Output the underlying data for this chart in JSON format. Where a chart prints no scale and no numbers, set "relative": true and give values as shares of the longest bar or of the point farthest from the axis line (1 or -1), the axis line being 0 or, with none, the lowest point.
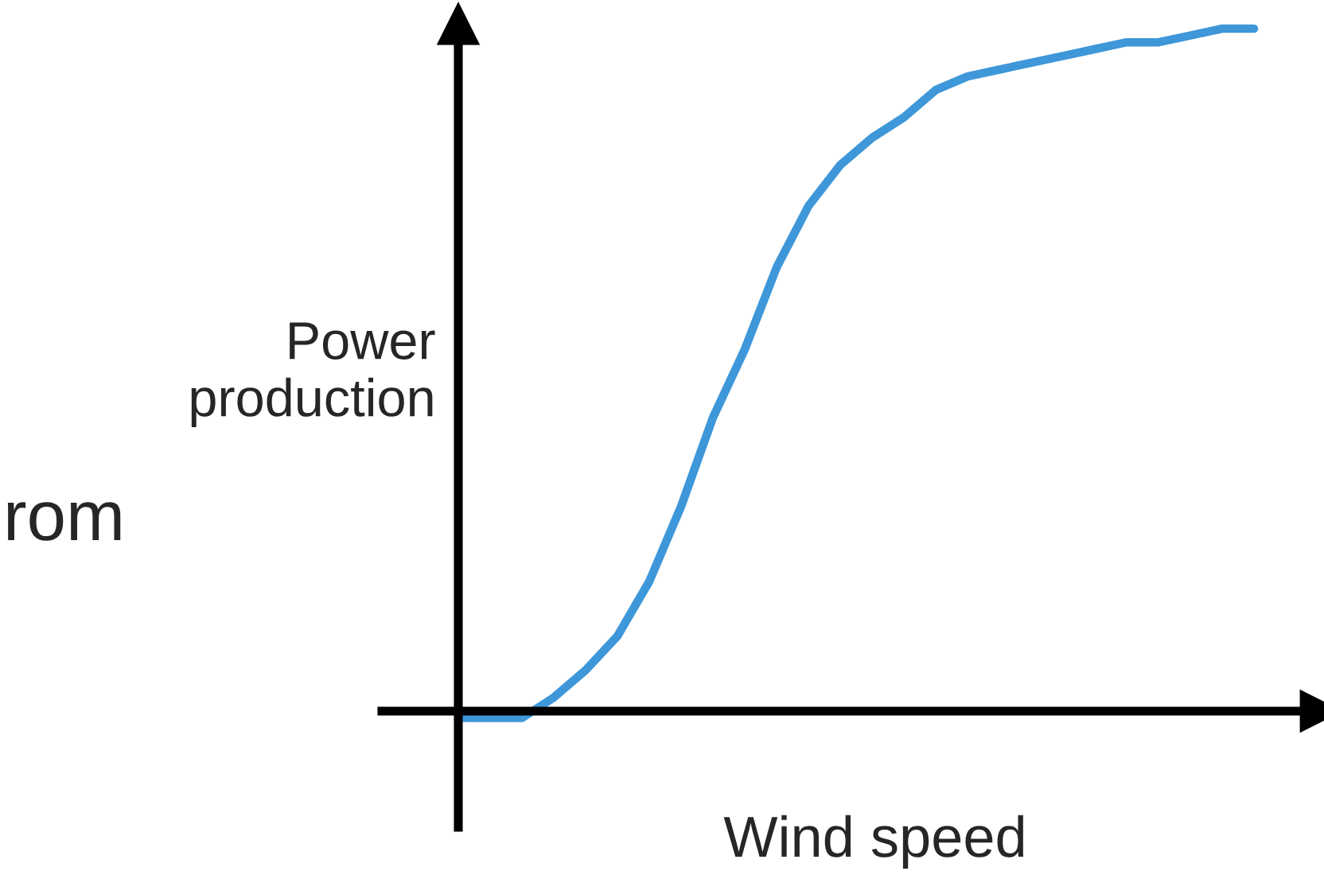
{
  "chart_data": {
    "type": "line",
    "relative": true,
    "xlabel": "Wind speed",
    "ylabel": "Power\nproduction",
    "annotations": [
      "rom"
    ],
    "categories": [
      null,
      null,
      null,
      null,
      null,
      null,
      null,
      null,
      null,
      null,
      null,
      null,
      null,
      null,
      null,
      null,
      null,
      null,
      null,
      null,
      null,
      null,
      null,
      null,
      null,
      null
    ],
    "series": [
      {
        "color": "#3e97d9",
        "values": [
          -0.01,
          -0.01,
          -0.01,
          0.02,
          0.06,
          0.11,
          0.19,
          0.3,
          0.43,
          0.53,
          0.65,
          0.74,
          0.8,
          0.84,
          0.87,
          0.91,
          0.93,
          0.94,
          0.95,
          0.96,
          0.97,
          0.98,
          0.98,
          0.99,
          1.0,
          1.0
        ]
      }
    ],
    "legend": false,
    "marker": "none",
    "line_style": "solid"
  }
}
